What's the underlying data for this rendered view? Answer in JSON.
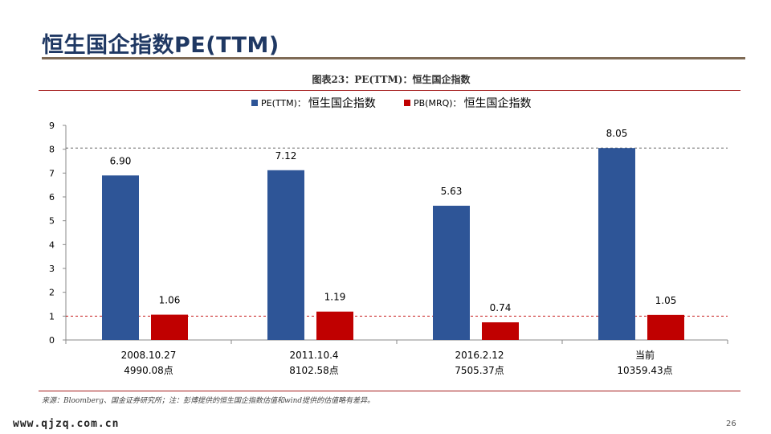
{
  "slide": {
    "title": "恒生国企指数PE(TTM)",
    "page_number": "26",
    "watermark": "www.qjzq.com.cn",
    "source": "来源：Bloomberg、国金证券研究所；注：彭博提供的恒生国企指数估值和wind提供的估值略有差异。"
  },
  "colors": {
    "title": "#1f3863",
    "pe": "#2e5597",
    "pb": "#c00000",
    "rule": "#7e6a55",
    "chart_rule": "#a51c1c"
  },
  "chart_data": {
    "type": "bar",
    "title": "图表23：PE(TTM)：恒生国企指数",
    "categories": [
      "2008.10.27",
      "2011.10.4",
      "2016.2.12",
      "当前"
    ],
    "category_sublabels": [
      "4990.08点",
      "8102.58点",
      "7505.37点",
      "10359.43点"
    ],
    "series": [
      {
        "name": "恒生国企指数",
        "key": "PE(TTM)：",
        "color": "#2e5597",
        "values": [
          6.9,
          7.12,
          5.63,
          8.05
        ],
        "labels": [
          "6.90",
          "7.12",
          "5.63",
          "8.05"
        ]
      },
      {
        "name": "恒生国企指数",
        "key": "PB(MRQ)：",
        "color": "#c00000",
        "values": [
          1.06,
          1.19,
          0.74,
          1.05
        ],
        "labels": [
          "1.06",
          "1.19",
          "0.74",
          "1.05"
        ]
      }
    ],
    "ylim": [
      0,
      9
    ],
    "yticks": [
      "0",
      "1",
      "2",
      "3",
      "4",
      "5",
      "6",
      "7",
      "8",
      "9"
    ],
    "reference_lines": [
      {
        "value": 8.05,
        "color": "#555555"
      },
      {
        "value": 1,
        "color": "#c00000"
      }
    ],
    "legend_position": "top-center",
    "xlabel": "",
    "ylabel": ""
  }
}
